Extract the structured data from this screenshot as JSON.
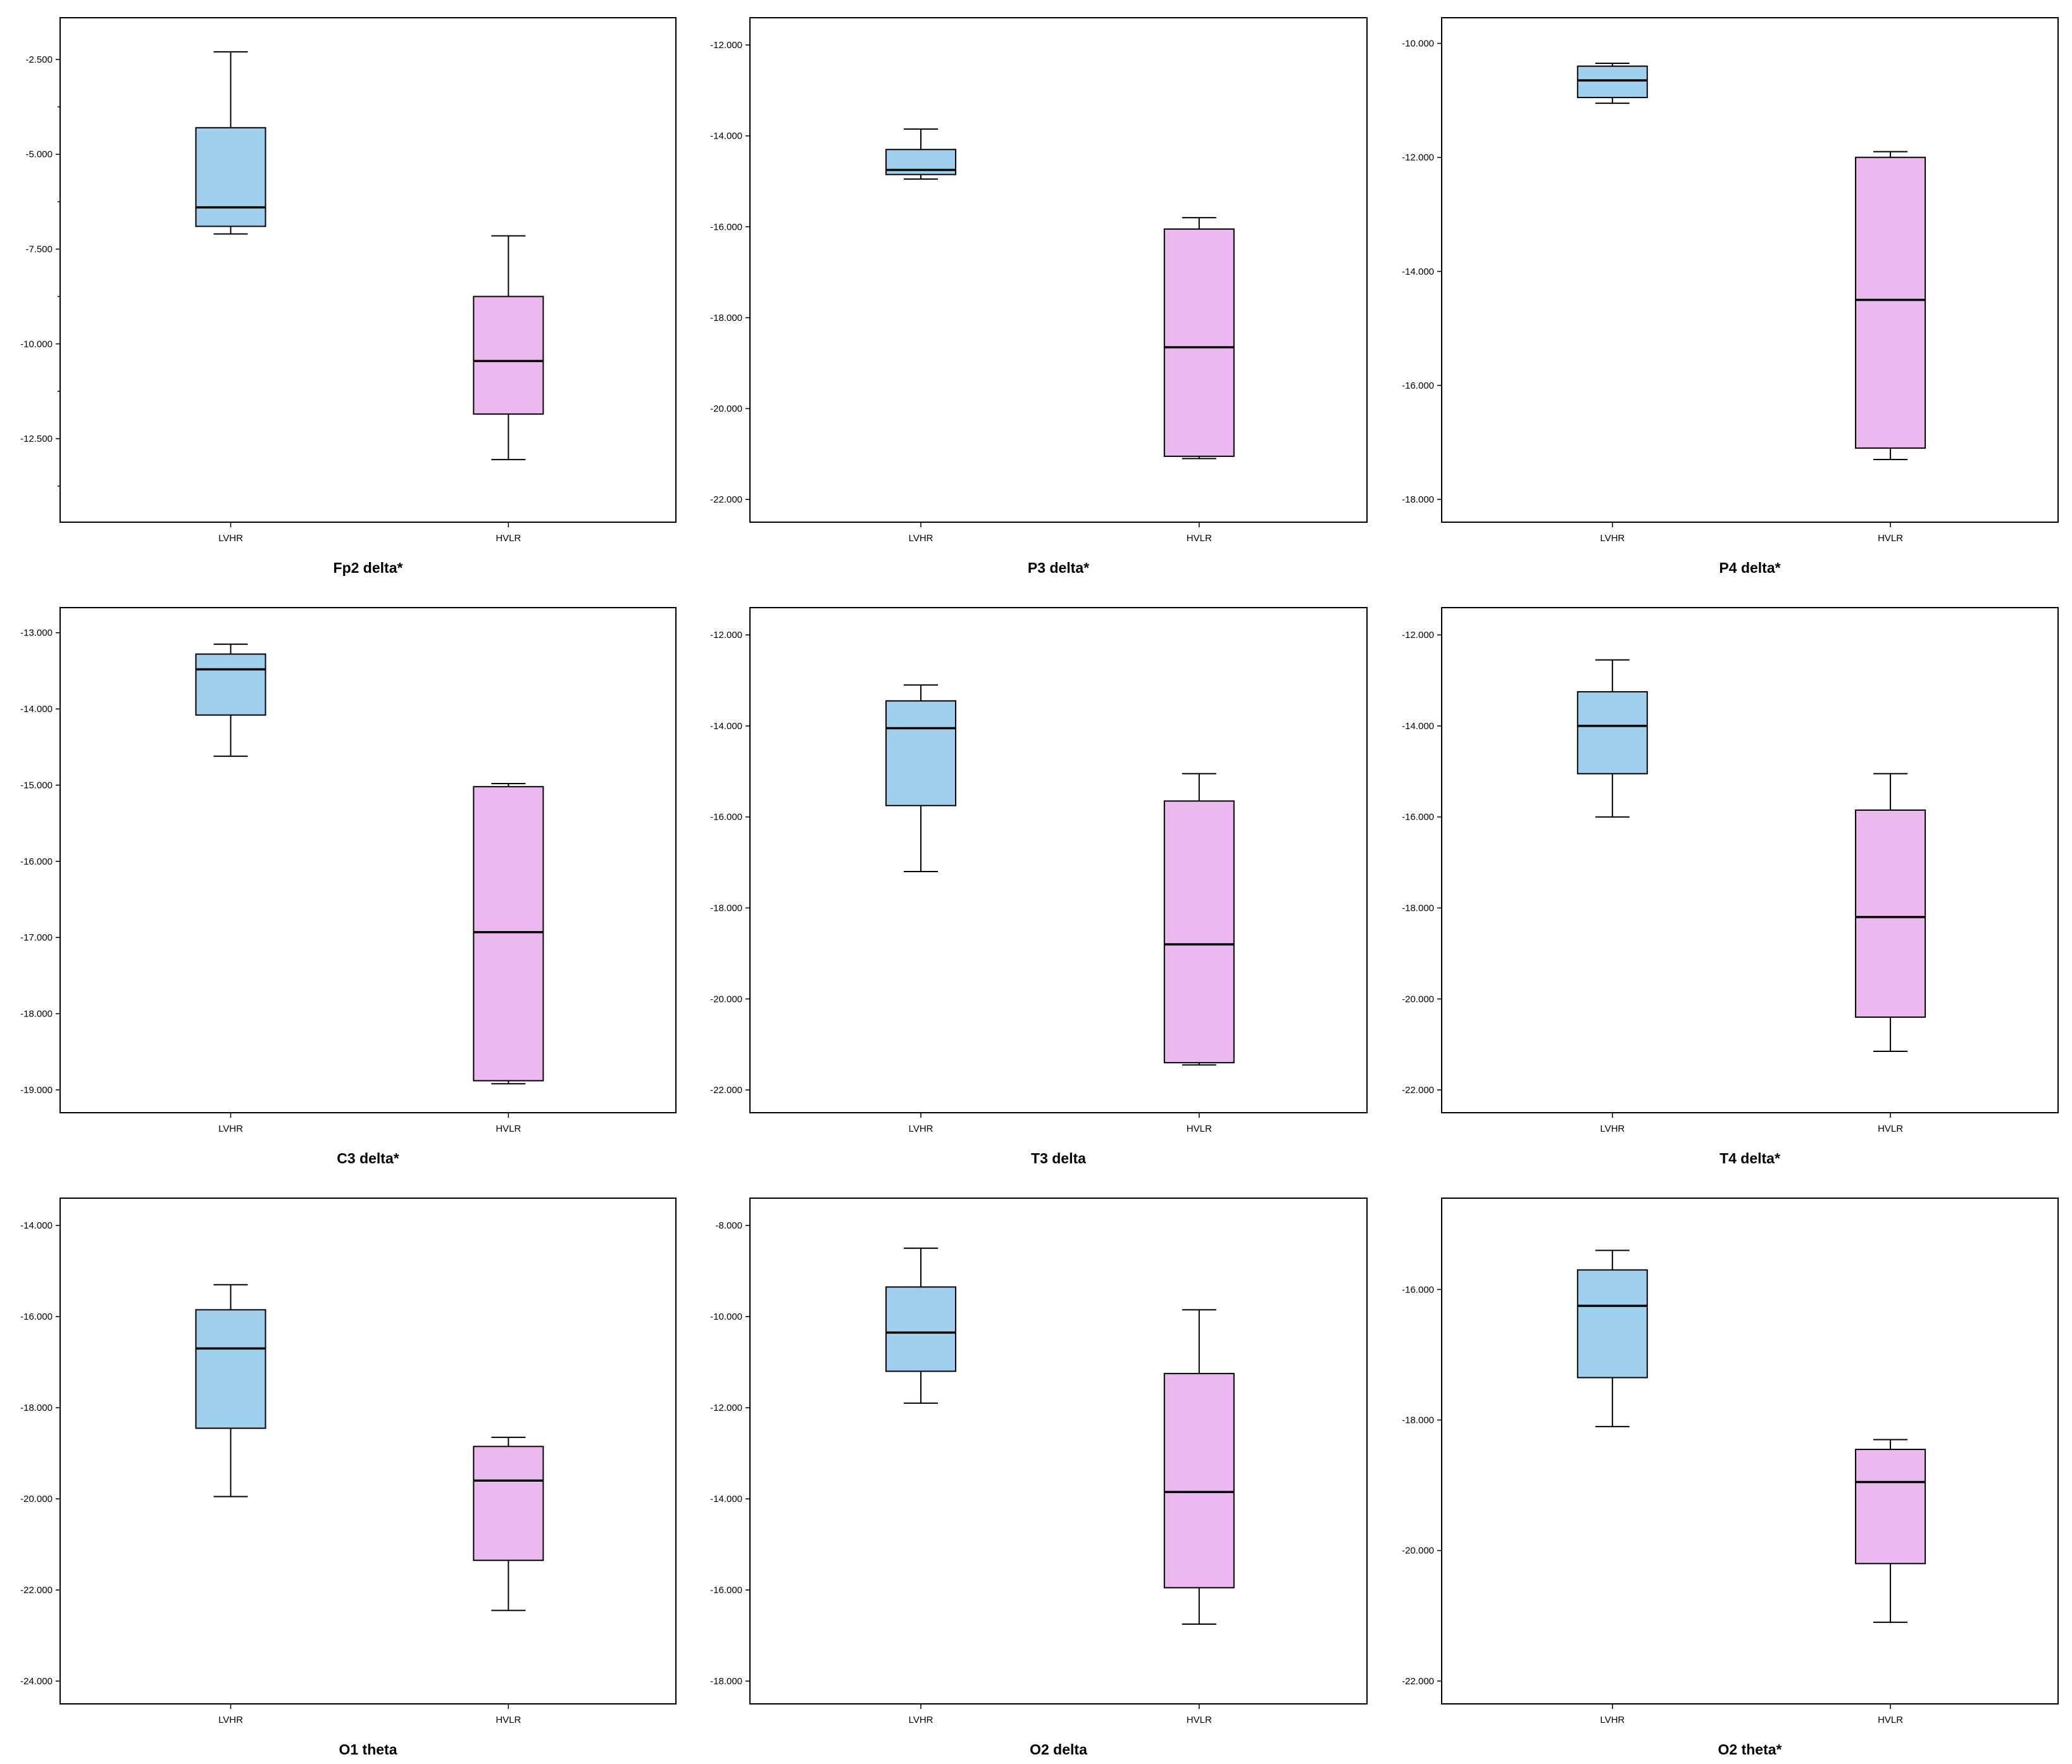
{
  "colors": {
    "LVHR": "#9fd0ee",
    "HVLR": "#ebb8ef",
    "line": "#000000"
  },
  "chart_data": [
    {
      "type": "boxplot",
      "title": "Fp2 delta*",
      "categories": [
        "LVHR",
        "HVLR"
      ],
      "ylim": [
        -14.7,
        -1.4
      ],
      "yticks": [
        -2.5,
        -5.0,
        -7.5,
        -10.0,
        -12.5
      ],
      "ytick_labels": [
        "-2.500",
        "-5.000",
        "-7.500",
        "-10.000",
        "-12.500"
      ],
      "minor_ticks": [
        -3.75,
        -6.25,
        -8.75,
        -11.25,
        -13.75
      ],
      "boxes": [
        {
          "whisker_low": -7.1,
          "q1": -6.9,
          "median": -6.4,
          "q3": -4.3,
          "whisker_high": -2.3
        },
        {
          "whisker_low": -13.05,
          "q1": -11.85,
          "median": -10.45,
          "q3": -8.75,
          "whisker_high": -7.15
        }
      ]
    },
    {
      "type": "boxplot",
      "title": "P3 delta*",
      "categories": [
        "LVHR",
        "HVLR"
      ],
      "ylim": [
        -22.5,
        -11.4
      ],
      "yticks": [
        -12,
        -14,
        -16,
        -18,
        -20,
        -22
      ],
      "ytick_labels": [
        "-12.000",
        "-14.000",
        "-16.000",
        "-18.000",
        "-20.000",
        "-22.000"
      ],
      "boxes": [
        {
          "whisker_low": -14.95,
          "q1": -14.85,
          "median": -14.75,
          "q3": -14.3,
          "whisker_high": -13.85
        },
        {
          "whisker_low": -21.1,
          "q1": -21.05,
          "median": -18.65,
          "q3": -16.05,
          "whisker_high": -15.8
        }
      ]
    },
    {
      "type": "boxplot",
      "title": "P4 delta*",
      "categories": [
        "LVHR",
        "HVLR"
      ],
      "ylim": [
        -18.4,
        -9.55
      ],
      "yticks": [
        -10,
        -12,
        -14,
        -16,
        -18
      ],
      "ytick_labels": [
        "-10.000",
        "-12.000",
        "-14.000",
        "-16.000",
        "-18.000"
      ],
      "boxes": [
        {
          "whisker_low": -11.05,
          "q1": -10.95,
          "median": -10.65,
          "q3": -10.4,
          "whisker_high": -10.35
        },
        {
          "whisker_low": -17.3,
          "q1": -17.1,
          "median": -14.5,
          "q3": -12.0,
          "whisker_high": -11.9
        }
      ]
    },
    {
      "type": "boxplot",
      "title": "C3 delta*",
      "categories": [
        "LVHR",
        "HVLR"
      ],
      "ylim": [
        -19.3,
        -12.67
      ],
      "yticks": [
        -13,
        -14,
        -15,
        -16,
        -17,
        -18,
        -19
      ],
      "ytick_labels": [
        "-13.000",
        "-14.000",
        "-15.000",
        "-16.000",
        "-17.000",
        "-18.000",
        "-19.000"
      ],
      "boxes": [
        {
          "whisker_low": -14.62,
          "q1": -14.08,
          "median": -13.48,
          "q3": -13.28,
          "whisker_high": -13.15
        },
        {
          "whisker_low": -18.92,
          "q1": -18.88,
          "median": -16.93,
          "q3": -15.02,
          "whisker_high": -14.98
        }
      ]
    },
    {
      "type": "boxplot",
      "title": "T3 delta",
      "categories": [
        "LVHR",
        "HVLR"
      ],
      "ylim": [
        -22.5,
        -11.4
      ],
      "yticks": [
        -12,
        -14,
        -16,
        -18,
        -20,
        -22
      ],
      "ytick_labels": [
        "-12.000",
        "-14.000",
        "-16.000",
        "-18.000",
        "-20.000",
        "-22.000"
      ],
      "boxes": [
        {
          "whisker_low": -17.2,
          "q1": -15.75,
          "median": -14.05,
          "q3": -13.45,
          "whisker_high": -13.1
        },
        {
          "whisker_low": -21.45,
          "q1": -21.4,
          "median": -18.8,
          "q3": -15.65,
          "whisker_high": -15.05
        }
      ]
    },
    {
      "type": "boxplot",
      "title": "T4 delta*",
      "categories": [
        "LVHR",
        "HVLR"
      ],
      "ylim": [
        -22.5,
        -11.4
      ],
      "yticks": [
        -12,
        -14,
        -16,
        -18,
        -20,
        -22
      ],
      "ytick_labels": [
        "-12.000",
        "-14.000",
        "-16.000",
        "-18.000",
        "-20.000",
        "-22.000"
      ],
      "boxes": [
        {
          "whisker_low": -16.0,
          "q1": -15.05,
          "median": -14.0,
          "q3": -13.25,
          "whisker_high": -12.55
        },
        {
          "whisker_low": -21.15,
          "q1": -20.4,
          "median": -18.2,
          "q3": -15.85,
          "whisker_high": -15.05
        }
      ]
    },
    {
      "type": "boxplot",
      "title": "O1 theta",
      "categories": [
        "LVHR",
        "HVLR"
      ],
      "ylim": [
        -24.5,
        -13.4
      ],
      "yticks": [
        -14,
        -16,
        -18,
        -20,
        -22,
        -24
      ],
      "ytick_labels": [
        "-14.000",
        "-16.000",
        "-18.000",
        "-20.000",
        "-22.000",
        "-24.000"
      ],
      "boxes": [
        {
          "whisker_low": -19.95,
          "q1": -18.45,
          "median": -16.7,
          "q3": -15.85,
          "whisker_high": -15.3
        },
        {
          "whisker_low": -22.45,
          "q1": -21.35,
          "median": -19.6,
          "q3": -18.85,
          "whisker_high": -18.65
        }
      ]
    },
    {
      "type": "boxplot",
      "title": "O2 delta",
      "categories": [
        "LVHR",
        "HVLR"
      ],
      "ylim": [
        -18.5,
        -7.4
      ],
      "yticks": [
        -8,
        -10,
        -12,
        -14,
        -16,
        -18
      ],
      "ytick_labels": [
        "-8.000",
        "-10.000",
        "-12.000",
        "-14.000",
        "-16.000",
        "-18.000"
      ],
      "boxes": [
        {
          "whisker_low": -11.9,
          "q1": -11.2,
          "median": -10.35,
          "q3": -9.35,
          "whisker_high": -8.5
        },
        {
          "whisker_low": -16.75,
          "q1": -15.95,
          "median": -13.85,
          "q3": -11.25,
          "whisker_high": -9.85
        }
      ]
    },
    {
      "type": "boxplot",
      "title": "O2 theta*",
      "categories": [
        "LVHR",
        "HVLR"
      ],
      "ylim": [
        -22.35,
        -14.6
      ],
      "yticks": [
        -16,
        -18,
        -20,
        -22
      ],
      "ytick_labels": [
        "-16.000",
        "-18.000",
        "-20.000",
        "-22.000"
      ],
      "boxes": [
        {
          "whisker_low": -18.1,
          "q1": -17.35,
          "median": -16.25,
          "q3": -15.7,
          "whisker_high": -15.4
        },
        {
          "whisker_low": -21.1,
          "q1": -20.2,
          "median": -18.95,
          "q3": -18.45,
          "whisker_high": -18.3
        }
      ]
    }
  ]
}
